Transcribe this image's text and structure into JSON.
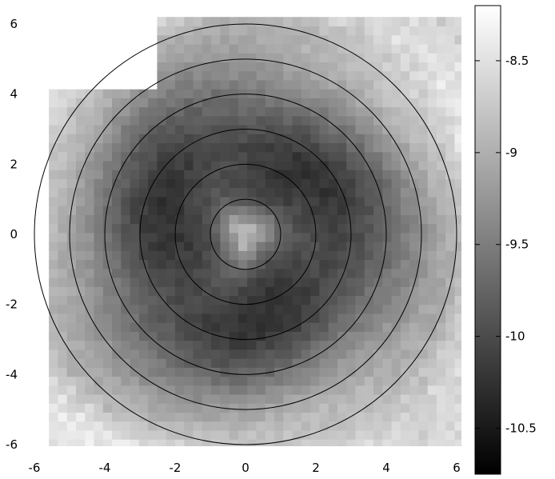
{
  "chart_data": {
    "type": "heatmap",
    "title": "",
    "xlabel": "",
    "ylabel": "",
    "colorbar_label": "",
    "xlim": [
      -6,
      6
    ],
    "ylim": [
      -6,
      6
    ],
    "grid": false,
    "colormap": "grayscale (black = low, white = high)",
    "color_range": [
      -10.75,
      -8.2
    ],
    "x_ticks": [
      "-6",
      "-4",
      "-2",
      "0",
      "2",
      "4",
      "6"
    ],
    "y_ticks": [
      "6",
      "4",
      "2",
      "0",
      "-2",
      "-4",
      "-6"
    ],
    "colorbar_ticks": [
      "-8.5",
      "-9",
      "-9.5",
      "-10",
      "-10.5"
    ],
    "colorbar_tick_values": [
      -8.5,
      -9,
      -9.5,
      -10,
      -10.5
    ],
    "grid_cells": 48,
    "contour_circles": {
      "center": [
        0,
        0
      ],
      "radii": [
        1,
        2,
        3,
        4,
        5,
        6
      ]
    },
    "value_profile": {
      "description_points_r": [
        0,
        0.4,
        1,
        1.5,
        2,
        2.5,
        3,
        3.5,
        4,
        4.5,
        5,
        5.5,
        6,
        6.5,
        7
      ],
      "description_points_v": [
        -8.7,
        -9.2,
        -9.85,
        -10.05,
        -10.1,
        -10.15,
        -10.05,
        -9.85,
        -9.65,
        -9.4,
        -9.2,
        -9.0,
        -8.9,
        -8.7,
        -8.5
      ]
    },
    "masked_regions": [
      {
        "x": [
          -6.1,
          -2.5
        ],
        "y": [
          4.2,
          6.2
        ]
      },
      {
        "x": [
          -6.1,
          -5.6
        ],
        "y": [
          -6.1,
          6.2
        ]
      }
    ]
  }
}
